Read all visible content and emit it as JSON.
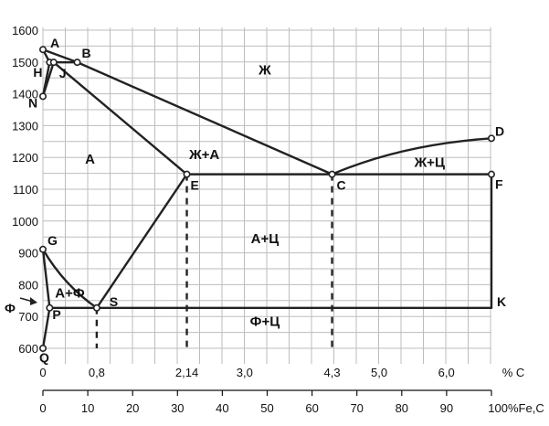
{
  "chart_data": {
    "type": "line",
    "title": "",
    "xlabel": "% C",
    "xlabel_pct": "100%Fe,C",
    "ylim": [
      570,
      1650
    ],
    "xlim": [
      0,
      6.67
    ],
    "y_ticks": [
      "600",
      "700",
      "800",
      "900",
      "1000",
      "1100",
      "1200",
      "1300",
      "1400",
      "1500",
      "1600"
    ],
    "x_ticks_carbon": [
      "0",
      "0,8",
      "2,14",
      "3,0",
      "4,3",
      "5,0",
      "6,0"
    ],
    "x_ticks_pct": [
      "0",
      "10",
      "20",
      "30",
      "40",
      "50",
      "60",
      "70",
      "80",
      "90"
    ],
    "points": [
      {
        "label": "A",
        "c": 0.0,
        "t": 1539
      },
      {
        "label": "B",
        "c": 0.51,
        "t": 1499
      },
      {
        "label": "H",
        "c": 0.1,
        "t": 1499
      },
      {
        "label": "J",
        "c": 0.16,
        "t": 1499
      },
      {
        "label": "N",
        "c": 0.0,
        "t": 1392
      },
      {
        "label": "C",
        "c": 4.3,
        "t": 1147
      },
      {
        "label": "D",
        "c": 6.67,
        "t": 1260
      },
      {
        "label": "E",
        "c": 2.14,
        "t": 1147
      },
      {
        "label": "F",
        "c": 6.67,
        "t": 1147
      },
      {
        "label": "G",
        "c": 0.0,
        "t": 911
      },
      {
        "label": "P",
        "c": 0.1,
        "t": 727
      },
      {
        "label": "S",
        "c": 0.8,
        "t": 727
      },
      {
        "label": "K",
        "c": 6.67,
        "t": 727
      },
      {
        "label": "Q",
        "c": 0.0,
        "t": 600
      },
      {
        "label": "Ф",
        "c": 0.0,
        "t": 727
      }
    ],
    "regions": [
      {
        "label": "Ж",
        "c": 3.3,
        "t": 1460
      },
      {
        "label": "Ж+А",
        "c": 2.4,
        "t": 1195
      },
      {
        "label": "А",
        "c": 0.7,
        "t": 1180
      },
      {
        "label": "Ж+Ц",
        "c": 5.75,
        "t": 1170
      },
      {
        "label": "А+Ц",
        "c": 3.3,
        "t": 930
      },
      {
        "label": "А+Ф",
        "c": 0.4,
        "t": 760
      },
      {
        "label": "Ф+Ц",
        "c": 3.3,
        "t": 670
      }
    ]
  }
}
